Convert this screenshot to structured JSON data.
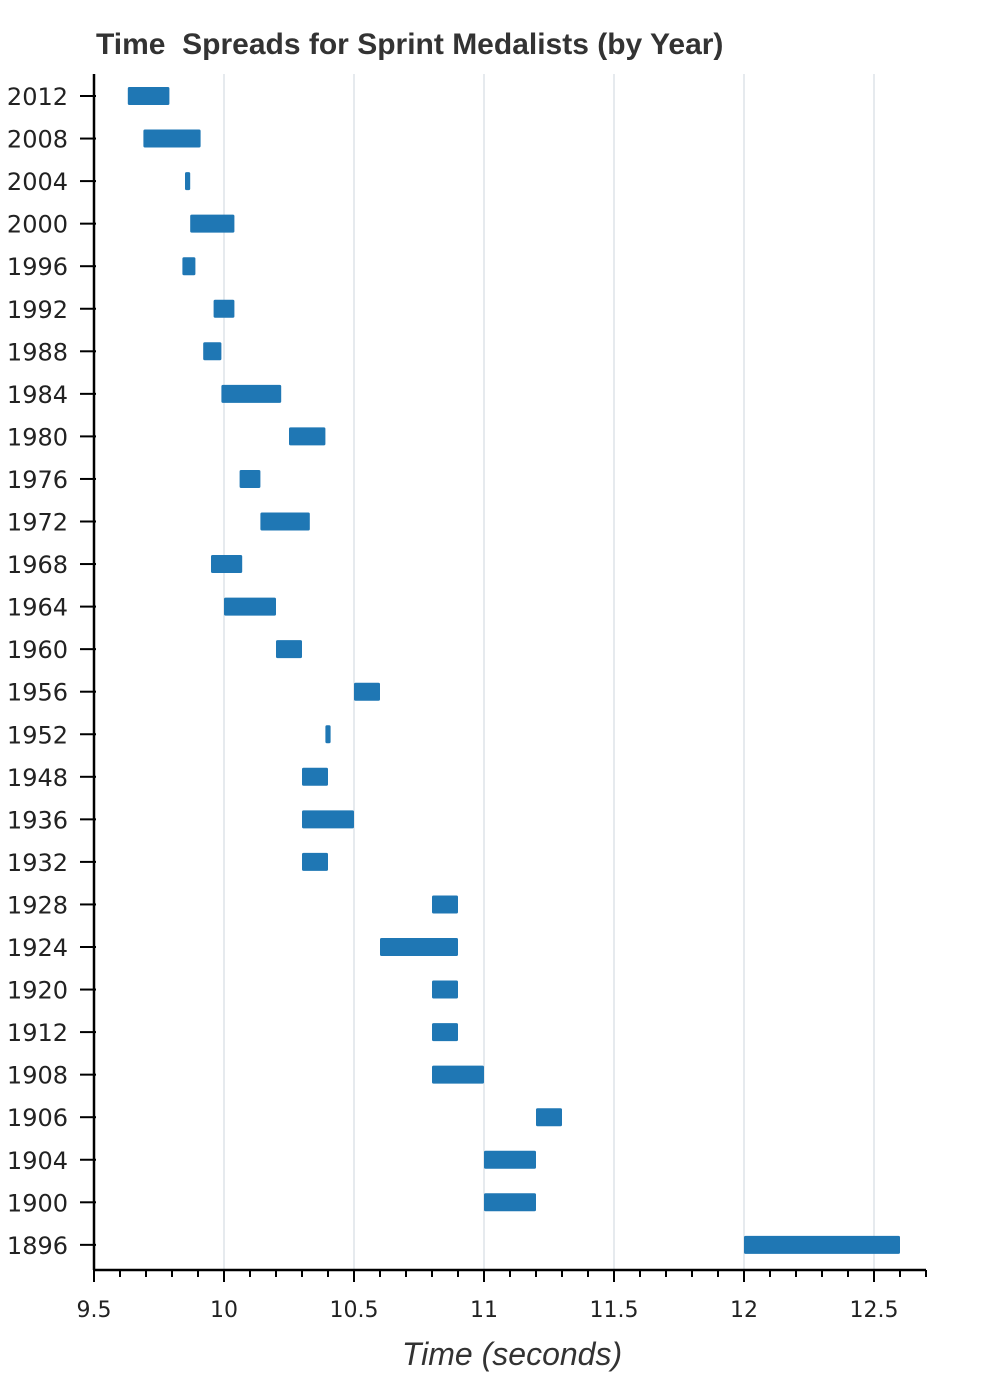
{
  "chart_data": {
    "type": "bar",
    "orientation": "horizontal-range",
    "title": "Time  Spreads for Sprint Medalists (by Year)",
    "xlabel": "Time (seconds)",
    "ylabel": "",
    "xlim": [
      9.5,
      12.7
    ],
    "xticks": [
      "9.5",
      "10",
      "10.5",
      "11",
      "11.5",
      "12",
      "12.5"
    ],
    "xtick_values": [
      9.5,
      10,
      10.5,
      11,
      11.5,
      12,
      12.5
    ],
    "grid": "vertical",
    "bar_color": "#1f77b4",
    "categories": [
      "2012",
      "2008",
      "2004",
      "2000",
      "1996",
      "1992",
      "1988",
      "1984",
      "1980",
      "1976",
      "1972",
      "1968",
      "1964",
      "1960",
      "1956",
      "1952",
      "1948",
      "1936",
      "1932",
      "1928",
      "1924",
      "1920",
      "1912",
      "1908",
      "1906",
      "1904",
      "1900",
      "1896"
    ],
    "ranges": [
      [
        9.63,
        9.79
      ],
      [
        9.69,
        9.91
      ],
      [
        9.85,
        9.87
      ],
      [
        9.87,
        10.04
      ],
      [
        9.84,
        9.89
      ],
      [
        9.96,
        10.04
      ],
      [
        9.92,
        9.99
      ],
      [
        9.99,
        10.22
      ],
      [
        10.25,
        10.39
      ],
      [
        10.06,
        10.14
      ],
      [
        10.14,
        10.33
      ],
      [
        9.95,
        10.07
      ],
      [
        10.0,
        10.2
      ],
      [
        10.2,
        10.3
      ],
      [
        10.5,
        10.6
      ],
      [
        10.39,
        10.41
      ],
      [
        10.3,
        10.4
      ],
      [
        10.3,
        10.5
      ],
      [
        10.3,
        10.4
      ],
      [
        10.8,
        10.9
      ],
      [
        10.6,
        10.9
      ],
      [
        10.8,
        10.9
      ],
      [
        10.8,
        10.9
      ],
      [
        10.8,
        11.0
      ],
      [
        11.2,
        11.3
      ],
      [
        11.0,
        11.2
      ],
      [
        11.0,
        11.2
      ],
      [
        12.0,
        12.6
      ]
    ]
  }
}
